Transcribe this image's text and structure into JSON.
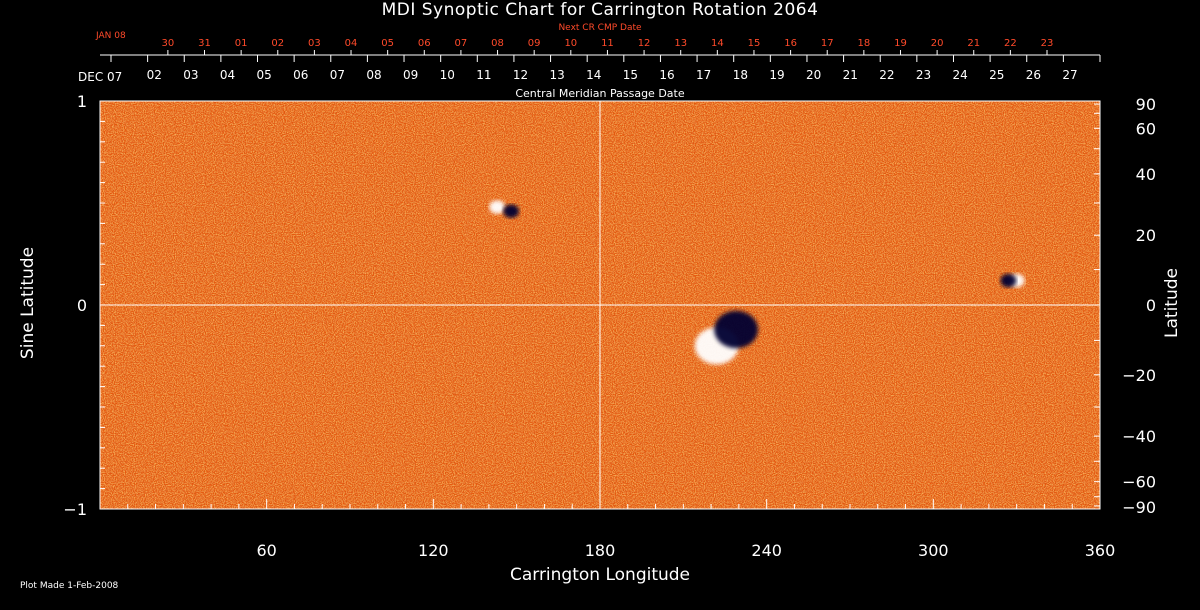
{
  "chart_data": {
    "type": "heatmap",
    "title": "MDI Synoptic Chart for Carrington Rotation 2064",
    "xlabel": "Carrington Longitude",
    "ylabel": "Sine Latitude",
    "ylabel_right": "Latitude",
    "xlim": [
      0,
      360
    ],
    "ylim": [
      -1,
      1
    ],
    "x_ticks": [
      60,
      120,
      180,
      240,
      300,
      360
    ],
    "y_ticks_left": [
      {
        "value": 1,
        "label": "1"
      },
      {
        "value": 0,
        "label": "0"
      },
      {
        "value": -1,
        "label": "−1"
      }
    ],
    "y_ticks_right_deg": [
      90,
      60,
      40,
      20,
      0,
      -20,
      -40,
      -60,
      -90
    ],
    "y_ticks_right_labels": [
      "90",
      "60",
      "40",
      "20",
      "0",
      "−20",
      "−40",
      "−60",
      "−90"
    ],
    "top_axis_label": "Central Meridian Passage Date",
    "top_axis_start_label": "DEC 07",
    "top_axis_dates": [
      "27",
      "26",
      "25",
      "24",
      "23",
      "22",
      "21",
      "20",
      "19",
      "18",
      "17",
      "16",
      "15",
      "14",
      "13",
      "12",
      "11",
      "10",
      "09",
      "08",
      "07",
      "06",
      "05",
      "04",
      "03",
      "02"
    ],
    "next_cr_label": "Next CR CMP Date",
    "next_cr_start_label": "JAN 08",
    "next_cr_dates": [
      "23",
      "22",
      "21",
      "20",
      "19",
      "18",
      "17",
      "16",
      "15",
      "14",
      "13",
      "12",
      "11",
      "10",
      "09",
      "08",
      "07",
      "06",
      "05",
      "04",
      "03",
      "02",
      "01",
      "31",
      "30"
    ],
    "features": [
      {
        "lon": 222,
        "sinlat": -0.2,
        "polarity": "positive",
        "size": "large"
      },
      {
        "lon": 229,
        "sinlat": -0.12,
        "polarity": "negative",
        "size": "large"
      },
      {
        "lon": 143,
        "sinlat": 0.48,
        "polarity": "positive",
        "size": "small"
      },
      {
        "lon": 148,
        "sinlat": 0.46,
        "polarity": "negative",
        "size": "small"
      },
      {
        "lon": 330,
        "sinlat": 0.12,
        "polarity": "positive",
        "size": "small"
      },
      {
        "lon": 327,
        "sinlat": 0.12,
        "polarity": "negative",
        "size": "small"
      }
    ],
    "grid": false,
    "crosshair": {
      "lon": 180,
      "sinlat": 0
    },
    "colors": {
      "background": "#000000",
      "field_base": "#e65a10",
      "positive": "#ffffff",
      "negative": "#000033",
      "axes": "#ffffff",
      "next_cr": "#ff4a2a"
    }
  },
  "plot_made_label": "Plot Made  1-Feb-2008"
}
